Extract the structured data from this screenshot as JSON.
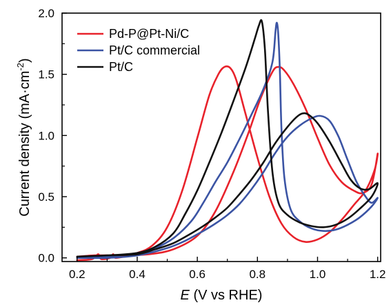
{
  "chart_data": {
    "type": "line",
    "xlabel_var": "E",
    "xlabel_rest": " (V vs RHE)",
    "ylabel_main": "Current density (mA·cm",
    "ylabel_sup": "-2",
    "ylabel_end": ")",
    "xlim": [
      0.15,
      1.21
    ],
    "ylim": [
      -0.03,
      2.0
    ],
    "xticks": [
      0.2,
      0.4,
      0.6,
      0.8,
      1.0,
      1.2
    ],
    "xtick_labels": [
      "0.2",
      "0.4",
      "0.6",
      "0.8",
      "1.0",
      "1.2"
    ],
    "yticks": [
      0.0,
      0.5,
      1.0,
      1.5,
      2.0
    ],
    "ytick_labels": [
      "0.0",
      "0.5",
      "1.0",
      "1.5",
      "2.0"
    ],
    "legend_position": "top-left",
    "series": [
      {
        "name": "Pd-P@Pt-Ni/C",
        "color": "#e8222b",
        "points": [
          [
            0.2,
            -0.02
          ],
          [
            0.25,
            -0.01
          ],
          [
            0.27,
            0.03
          ],
          [
            0.28,
            -0.01
          ],
          [
            0.31,
            0.0
          ],
          [
            0.32,
            0.03
          ],
          [
            0.33,
            0.0
          ],
          [
            0.4,
            0.04
          ],
          [
            0.45,
            0.1
          ],
          [
            0.5,
            0.25
          ],
          [
            0.55,
            0.55
          ],
          [
            0.6,
            0.98
          ],
          [
            0.64,
            1.33
          ],
          [
            0.67,
            1.5
          ],
          [
            0.69,
            1.56
          ],
          [
            0.71,
            1.55
          ],
          [
            0.73,
            1.45
          ],
          [
            0.76,
            1.18
          ],
          [
            0.8,
            0.82
          ],
          [
            0.84,
            0.5
          ],
          [
            0.88,
            0.28
          ],
          [
            0.92,
            0.17
          ],
          [
            0.96,
            0.13
          ],
          [
            1.0,
            0.15
          ],
          [
            1.04,
            0.21
          ],
          [
            1.08,
            0.31
          ],
          [
            1.12,
            0.43
          ],
          [
            1.16,
            0.55
          ],
          [
            1.19,
            0.72
          ],
          [
            1.2,
            0.85
          ],
          [
            1.18,
            0.6
          ],
          [
            1.15,
            0.53
          ],
          [
            1.12,
            0.55
          ],
          [
            1.08,
            0.62
          ],
          [
            1.04,
            0.76
          ],
          [
            1.0,
            0.98
          ],
          [
            0.96,
            1.22
          ],
          [
            0.92,
            1.42
          ],
          [
            0.89,
            1.53
          ],
          [
            0.87,
            1.56
          ],
          [
            0.85,
            1.52
          ],
          [
            0.81,
            1.3
          ],
          [
            0.77,
            1.02
          ],
          [
            0.72,
            0.7
          ],
          [
            0.66,
            0.38
          ],
          [
            0.6,
            0.18
          ],
          [
            0.52,
            0.07
          ],
          [
            0.44,
            0.03
          ],
          [
            0.34,
            0.02
          ],
          [
            0.26,
            0.02
          ],
          [
            0.2,
            0.01
          ]
        ]
      },
      {
        "name": "Pt/C commercial",
        "color": "#3b54a4",
        "points": [
          [
            0.2,
            0.0
          ],
          [
            0.3,
            0.0
          ],
          [
            0.4,
            0.02
          ],
          [
            0.5,
            0.08
          ],
          [
            0.56,
            0.14
          ],
          [
            0.62,
            0.22
          ],
          [
            0.66,
            0.28
          ],
          [
            0.7,
            0.35
          ],
          [
            0.74,
            0.44
          ],
          [
            0.78,
            0.56
          ],
          [
            0.82,
            0.7
          ],
          [
            0.86,
            0.86
          ],
          [
            0.9,
            0.99
          ],
          [
            0.94,
            1.08
          ],
          [
            0.98,
            1.14
          ],
          [
            1.01,
            1.16
          ],
          [
            1.04,
            1.12
          ],
          [
            1.07,
            0.99
          ],
          [
            1.1,
            0.8
          ],
          [
            1.13,
            0.62
          ],
          [
            1.16,
            0.5
          ],
          [
            1.18,
            0.45
          ],
          [
            1.2,
            0.49
          ],
          [
            1.18,
            0.42
          ],
          [
            1.14,
            0.33
          ],
          [
            1.1,
            0.27
          ],
          [
            1.06,
            0.23
          ],
          [
            1.02,
            0.22
          ],
          [
            0.98,
            0.24
          ],
          [
            0.94,
            0.3
          ],
          [
            0.91,
            0.4
          ],
          [
            0.89,
            0.65
          ],
          [
            0.88,
            1.05
          ],
          [
            0.875,
            1.5
          ],
          [
            0.87,
            1.8
          ],
          [
            0.865,
            1.92
          ],
          [
            0.86,
            1.85
          ],
          [
            0.85,
            1.6
          ],
          [
            0.82,
            1.38
          ],
          [
            0.78,
            1.17
          ],
          [
            0.74,
            0.97
          ],
          [
            0.7,
            0.78
          ],
          [
            0.66,
            0.62
          ],
          [
            0.62,
            0.45
          ],
          [
            0.58,
            0.3
          ],
          [
            0.52,
            0.16
          ],
          [
            0.46,
            0.08
          ],
          [
            0.4,
            0.04
          ],
          [
            0.3,
            0.01
          ],
          [
            0.2,
            0.0
          ]
        ]
      },
      {
        "name": "Pt/C",
        "color": "#111111",
        "points": [
          [
            0.2,
            0.01
          ],
          [
            0.3,
            0.02
          ],
          [
            0.4,
            0.03
          ],
          [
            0.46,
            0.07
          ],
          [
            0.52,
            0.12
          ],
          [
            0.58,
            0.2
          ],
          [
            0.62,
            0.26
          ],
          [
            0.66,
            0.33
          ],
          [
            0.7,
            0.41
          ],
          [
            0.74,
            0.52
          ],
          [
            0.78,
            0.64
          ],
          [
            0.82,
            0.78
          ],
          [
            0.86,
            0.94
          ],
          [
            0.9,
            1.07
          ],
          [
            0.93,
            1.15
          ],
          [
            0.95,
            1.18
          ],
          [
            0.97,
            1.17
          ],
          [
            1.0,
            1.1
          ],
          [
            1.04,
            0.95
          ],
          [
            1.08,
            0.77
          ],
          [
            1.11,
            0.64
          ],
          [
            1.14,
            0.57
          ],
          [
            1.17,
            0.56
          ],
          [
            1.2,
            0.61
          ],
          [
            1.18,
            0.5
          ],
          [
            1.14,
            0.4
          ],
          [
            1.1,
            0.32
          ],
          [
            1.06,
            0.27
          ],
          [
            1.02,
            0.25
          ],
          [
            0.98,
            0.26
          ],
          [
            0.94,
            0.29
          ],
          [
            0.9,
            0.35
          ],
          [
            0.87,
            0.45
          ],
          [
            0.85,
            0.7
          ],
          [
            0.835,
            1.2
          ],
          [
            0.825,
            1.7
          ],
          [
            0.815,
            1.93
          ],
          [
            0.805,
            1.9
          ],
          [
            0.79,
            1.78
          ],
          [
            0.76,
            1.55
          ],
          [
            0.72,
            1.28
          ],
          [
            0.68,
            1.02
          ],
          [
            0.64,
            0.78
          ],
          [
            0.6,
            0.55
          ],
          [
            0.56,
            0.36
          ],
          [
            0.52,
            0.2
          ],
          [
            0.46,
            0.09
          ],
          [
            0.4,
            0.04
          ],
          [
            0.3,
            0.02
          ],
          [
            0.2,
            0.01
          ]
        ]
      }
    ]
  }
}
